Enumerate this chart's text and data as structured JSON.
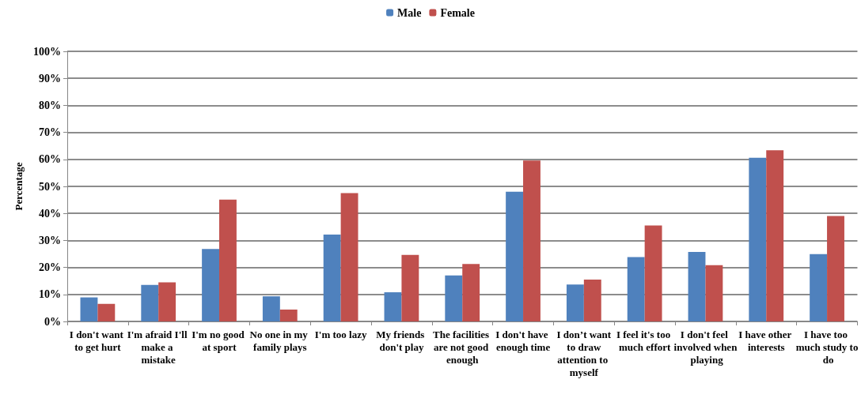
{
  "chart_data": {
    "type": "bar",
    "ylabel": "Percentage",
    "categories": [
      "I don't want to get hurt",
      "I'm afraid I'll make a mistake",
      "I'm no good at sport",
      "No one in my family plays",
      "I'm too lazy",
      "My friends don't play",
      "The facilities are not good enough",
      "I don't have enough time",
      "I don’t want to draw attention to myself",
      "I feel it's too much effort",
      "I don't feel involved when playing",
      "I have other interests",
      "I have too much study to do"
    ],
    "series": [
      {
        "name": "Male",
        "color": "#4f81bd",
        "values": [
          8.9,
          13.5,
          26.8,
          9.3,
          32.2,
          10.8,
          17.0,
          48.0,
          13.7,
          23.8,
          25.7,
          60.6,
          24.9
        ]
      },
      {
        "name": "Female",
        "color": "#c0504d",
        "values": [
          6.5,
          14.5,
          45.1,
          4.4,
          47.5,
          24.6,
          21.3,
          59.6,
          15.5,
          35.5,
          20.8,
          63.4,
          39.0
        ]
      }
    ],
    "ylim": [
      0,
      100
    ],
    "yticks": [
      {
        "value": 0,
        "label": "0%"
      },
      {
        "value": 10,
        "label": "10%"
      },
      {
        "value": 20,
        "label": "20%"
      },
      {
        "value": 30,
        "label": "30%"
      },
      {
        "value": 40,
        "label": "40%"
      },
      {
        "value": 50,
        "label": "50%"
      },
      {
        "value": 60,
        "label": "60%"
      },
      {
        "value": 70,
        "label": "70%"
      },
      {
        "value": 80,
        "label": "80%"
      },
      {
        "value": 90,
        "label": "90%"
      },
      {
        "value": 100,
        "label": "100%"
      }
    ],
    "grid": "y",
    "legend": "top"
  }
}
